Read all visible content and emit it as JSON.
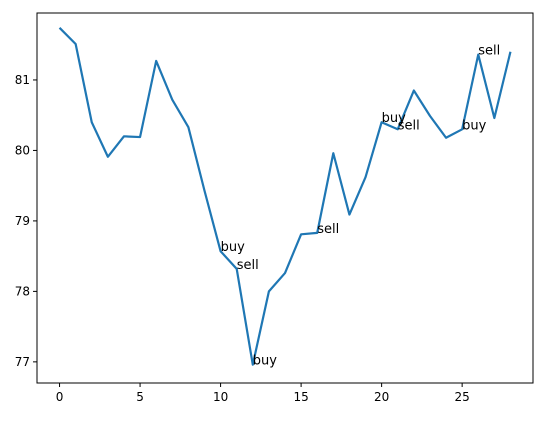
{
  "chart_data": {
    "type": "line",
    "title": "",
    "xlabel": "",
    "ylabel": "",
    "xlim": [
      -1.4,
      29.4
    ],
    "ylim": [
      76.7,
      81.95
    ],
    "grid": false,
    "legend": "none",
    "line_color": "#1f77b4",
    "x_ticks": [
      0,
      5,
      10,
      15,
      20,
      25
    ],
    "y_ticks": [
      77,
      78,
      79,
      80,
      81
    ],
    "x_tick_labels": [
      "0",
      "5",
      "10",
      "15",
      "20",
      "25"
    ],
    "y_tick_labels": [
      "77",
      "78",
      "79",
      "80",
      "81"
    ],
    "series": [
      {
        "x": [
          0,
          1,
          2,
          3,
          4,
          5,
          6,
          7,
          8,
          9,
          10,
          11,
          12,
          13,
          14,
          15,
          16,
          17,
          18,
          19,
          20,
          21,
          22,
          23,
          24,
          25,
          26,
          27,
          28
        ],
        "values": [
          81.74,
          81.51,
          80.4,
          79.91,
          80.2,
          80.19,
          81.27,
          80.72,
          80.33,
          79.43,
          78.57,
          78.32,
          76.96,
          78.0,
          78.26,
          78.81,
          78.83,
          79.96,
          79.09,
          79.62,
          80.4,
          80.3,
          80.85,
          80.49,
          80.18,
          80.3,
          81.36,
          80.46,
          81.4
        ]
      }
    ],
    "annotations": [
      {
        "text": "buy",
        "x": 10,
        "y": 78.57
      },
      {
        "text": "sell",
        "x": 11,
        "y": 78.32
      },
      {
        "text": "buy",
        "x": 12,
        "y": 76.96
      },
      {
        "text": "sell",
        "x": 16,
        "y": 78.83
      },
      {
        "text": "buy",
        "x": 20,
        "y": 80.4
      },
      {
        "text": "sell",
        "x": 21,
        "y": 80.3
      },
      {
        "text": "buy",
        "x": 25,
        "y": 80.3
      },
      {
        "text": "sell",
        "x": 26,
        "y": 81.36
      }
    ]
  }
}
